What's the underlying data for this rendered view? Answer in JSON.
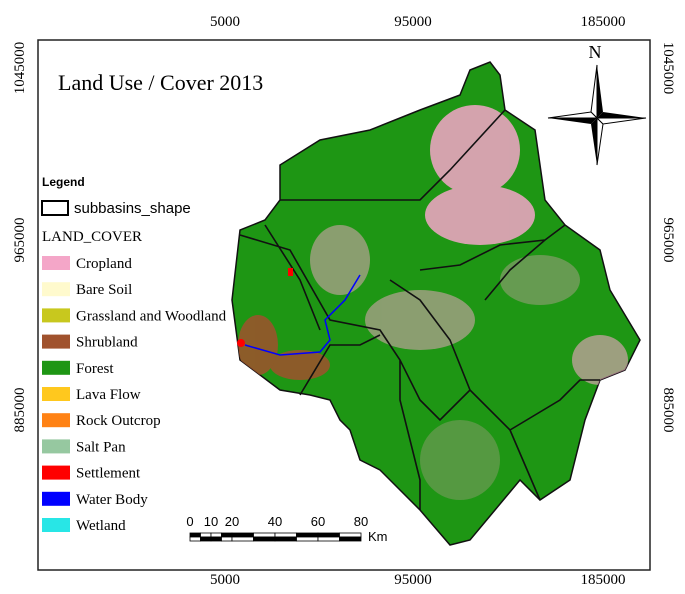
{
  "title": "Land Use / Cover 2013",
  "north": "N",
  "x_ticks": [
    "5000",
    "95000",
    "185000"
  ],
  "y_ticks": [
    "1045000",
    "965000",
    "885000"
  ],
  "legend": {
    "title": "Legend",
    "boundary": "subbasins_shape",
    "group": "LAND_COVER",
    "items": [
      {
        "label": "Cropland",
        "color": "#f4a6c8"
      },
      {
        "label": "Bare Soil",
        "color": "#fffacd"
      },
      {
        "label": "Grassland and Woodland",
        "color": "#c8c81e"
      },
      {
        "label": "Shrubland",
        "color": "#a0522d"
      },
      {
        "label": " Forest",
        "color": "#1e9614"
      },
      {
        "label": "Lava Flow",
        "color": "#ffc81e"
      },
      {
        "label": "Rock Outcrop",
        "color": "#ff8214"
      },
      {
        "label": "Salt Pan",
        "color": "#96c8a0"
      },
      {
        "label": "Settlement",
        "color": "#ff0000"
      },
      {
        "label": "Water Body",
        "color": "#0000ff"
      },
      {
        "label": "Wetland",
        "color": "#28e6e6"
      }
    ]
  },
  "scale": {
    "ticks": [
      "0",
      "10",
      "20",
      "40",
      "60",
      "80"
    ],
    "unit": "Km"
  }
}
